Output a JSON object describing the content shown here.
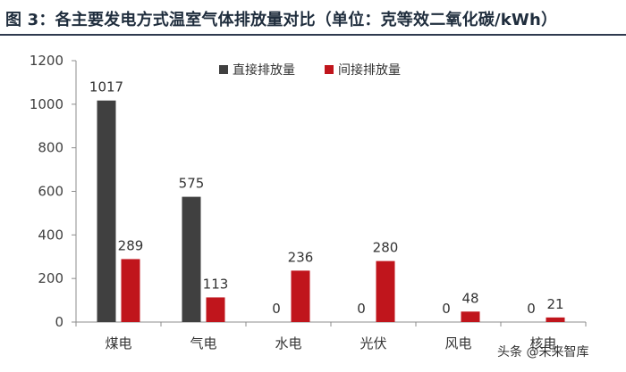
{
  "header": {
    "title": "图 3：各主要发电方式温室气体排放量对比（单位：克等效二氧化碳/kWh）"
  },
  "chart_data": {
    "type": "bar",
    "categories": [
      "煤电",
      "气电",
      "水电",
      "光伏",
      "风电",
      "核电"
    ],
    "series": [
      {
        "name": "直接排放量",
        "values": [
          1017,
          575,
          0,
          0,
          0,
          0
        ],
        "color": "#404040"
      },
      {
        "name": "间接排放量",
        "values": [
          289,
          113,
          236,
          280,
          48,
          21
        ],
        "color": "#c0151c"
      }
    ],
    "ylim": [
      0,
      1200
    ],
    "yticks": [
      0,
      200,
      400,
      600,
      800,
      1000,
      1200
    ],
    "grid": false,
    "legend_position": "top"
  },
  "watermark": {
    "text": "头条 @未来智库"
  }
}
